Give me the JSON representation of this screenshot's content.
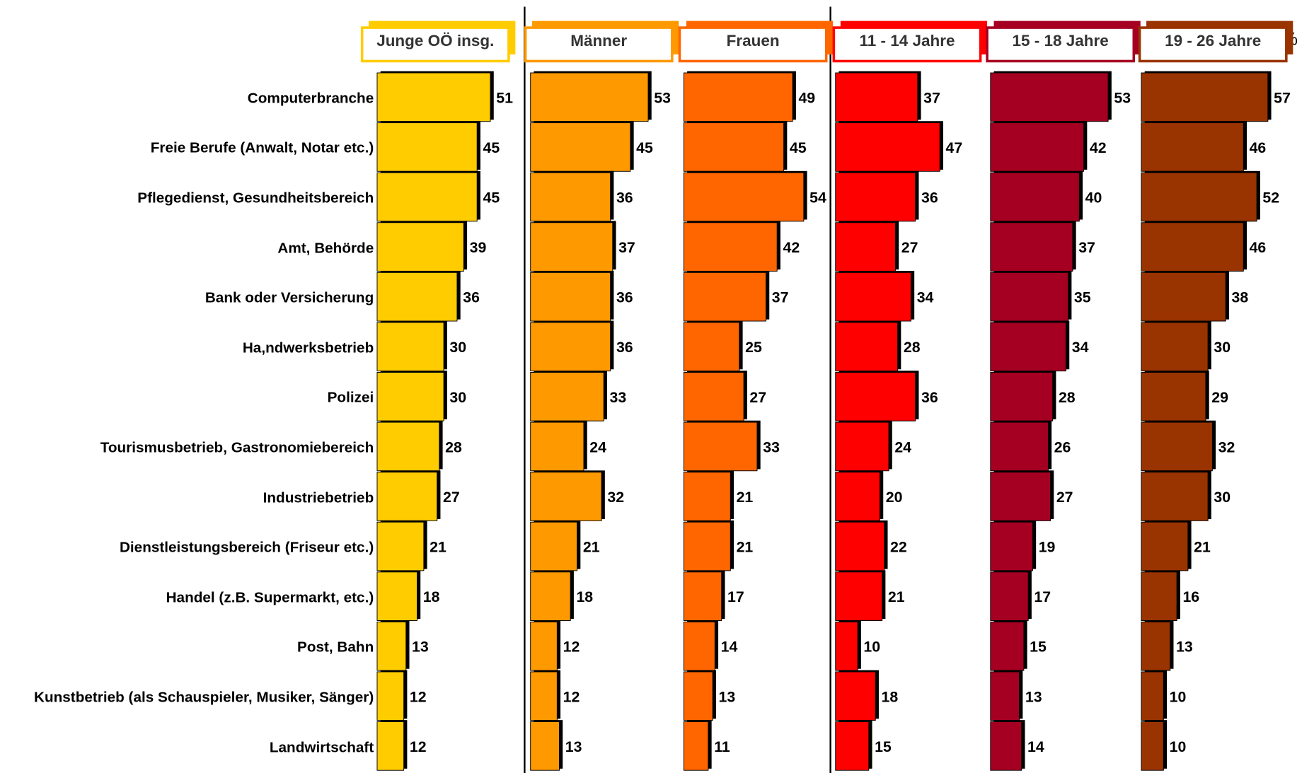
{
  "chart_data": {
    "type": "bar",
    "unit": "%",
    "categories": [
      "Computerbranche",
      "Freie Berufe (Anwalt, Notar etc.)",
      "Pflegedienst, Gesundheitsbereich",
      "Amt, Behörde",
      "Bank oder Versicherung",
      "Ha,ndwerksbetrieb",
      "Polizei",
      "Tourismusbetrieb, Gastronomiebereich",
      "Industriebetrieb",
      "Dienstleistungsbereich (Friseur etc.)",
      "Handel (z.B. Supermarkt, etc.)",
      "Post, Bahn",
      "Kunstbetrieb (als Schauspieler, Musiker, Sänger)",
      "Landwirtschaft"
    ],
    "series": [
      {
        "name": "Junge OÖ insg.",
        "color": "#ffcc00",
        "values": [
          51,
          45,
          45,
          39,
          36,
          30,
          30,
          28,
          27,
          21,
          18,
          13,
          12,
          12
        ]
      },
      {
        "name": "Männer",
        "color": "#ff9900",
        "values": [
          53,
          45,
          36,
          37,
          36,
          36,
          33,
          24,
          32,
          21,
          18,
          12,
          12,
          13
        ]
      },
      {
        "name": "Frauen",
        "color": "#ff6600",
        "values": [
          49,
          45,
          54,
          42,
          37,
          25,
          27,
          33,
          21,
          21,
          17,
          14,
          13,
          11
        ]
      },
      {
        "name": "11 - 14 Jahre",
        "color": "#ff0000",
        "values": [
          37,
          47,
          36,
          27,
          34,
          28,
          36,
          24,
          20,
          22,
          21,
          10,
          18,
          15
        ]
      },
      {
        "name": "15 - 18 Jahre",
        "color": "#a50021",
        "values": [
          53,
          42,
          40,
          37,
          35,
          34,
          28,
          26,
          27,
          19,
          17,
          15,
          13,
          14
        ]
      },
      {
        "name": "19 - 26 Jahre",
        "color": "#993300",
        "values": [
          57,
          46,
          52,
          46,
          38,
          30,
          29,
          32,
          30,
          21,
          16,
          13,
          10,
          10
        ]
      }
    ]
  }
}
